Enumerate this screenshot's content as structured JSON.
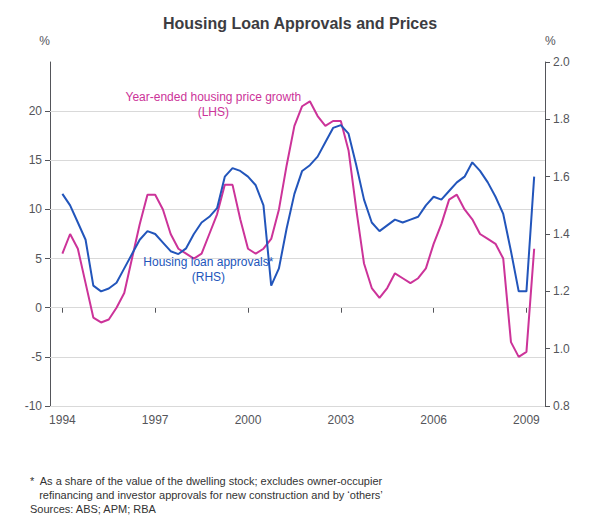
{
  "chart_data": {
    "type": "line",
    "title": "Housing Loan Approvals and Prices",
    "x": [
      1994.0,
      1994.25,
      1994.5,
      1994.75,
      1995.0,
      1995.25,
      1995.5,
      1995.75,
      1996.0,
      1996.25,
      1996.5,
      1996.75,
      1997.0,
      1997.25,
      1997.5,
      1997.75,
      1998.0,
      1998.25,
      1998.5,
      1998.75,
      1999.0,
      1999.25,
      1999.5,
      1999.75,
      2000.0,
      2000.25,
      2000.5,
      2000.75,
      2001.0,
      2001.25,
      2001.5,
      2001.75,
      2002.0,
      2002.25,
      2002.5,
      2002.75,
      2003.0,
      2003.25,
      2003.5,
      2003.75,
      2004.0,
      2004.25,
      2004.5,
      2004.75,
      2005.0,
      2005.25,
      2005.5,
      2005.75,
      2006.0,
      2006.25,
      2006.5,
      2006.75,
      2007.0,
      2007.25,
      2007.5,
      2007.75,
      2008.0,
      2008.25,
      2008.5,
      2008.75,
      2009.0,
      2009.25
    ],
    "xlim": [
      1993.6,
      2009.6
    ],
    "xticks": [
      1994,
      1997,
      2000,
      2003,
      2006,
      2009
    ],
    "ylim": [
      -10,
      25
    ],
    "yticks": [
      -10,
      -5,
      0,
      5,
      10,
      15,
      20
    ],
    "y2lim": [
      0.8,
      2.0
    ],
    "y2ticks": [
      0.8,
      {
        "value": 1.0,
        "label": "1.0"
      },
      1.2,
      1.4,
      1.6,
      1.8,
      {
        "value": 2.0,
        "label": "2.0"
      }
    ],
    "ylabel": "%",
    "y2label": "%",
    "grid": true,
    "series": [
      {
        "color": "#cc3399",
        "values": [
          5.5,
          7.5,
          6.0,
          2.5,
          -1.0,
          -1.5,
          -1.2,
          0.0,
          1.5,
          5.0,
          8.5,
          11.5,
          11.5,
          10.0,
          7.5,
          6.0,
          5.5,
          5.0,
          5.5,
          7.5,
          9.5,
          12.5,
          12.5,
          9.0,
          6.0,
          5.5,
          6.0,
          7.0,
          10.0,
          14.5,
          18.5,
          20.5,
          21.0,
          19.5,
          18.5,
          19.0,
          19.0,
          16.0,
          10.0,
          4.5,
          2.0,
          1.0,
          2.0,
          3.5,
          3.0,
          2.5,
          3.0,
          4.0,
          6.5,
          8.5,
          11.0,
          11.5,
          10.0,
          9.0,
          7.5,
          7.0,
          6.5,
          5.0,
          -3.5,
          -5.0,
          -4.5,
          6.0
        ]
      },
      {
        "color": "#2255bb",
        "axis": "y2",
        "values": [
          1.54,
          1.5,
          1.44,
          1.38,
          1.22,
          1.2,
          1.21,
          1.23,
          1.28,
          1.33,
          1.38,
          1.41,
          1.4,
          1.37,
          1.34,
          1.33,
          1.35,
          1.4,
          1.44,
          1.46,
          1.49,
          1.6,
          1.63,
          1.62,
          1.6,
          1.57,
          1.5,
          1.22,
          1.28,
          1.42,
          1.54,
          1.62,
          1.64,
          1.67,
          1.72,
          1.77,
          1.78,
          1.75,
          1.64,
          1.52,
          1.44,
          1.41,
          1.43,
          1.45,
          1.44,
          1.45,
          1.46,
          1.5,
          1.53,
          1.52,
          1.55,
          1.58,
          1.6,
          1.65,
          1.62,
          1.58,
          1.53,
          1.47,
          1.34,
          1.2,
          1.2,
          1.6
        ]
      }
    ],
    "annotations": [
      {
        "text": "Year-ended housing price growth\n(LHS)",
        "color": "#cc3399"
      },
      {
        "text": "Housing loan approvals*\n(RHS)",
        "color": "#2255bb"
      }
    ],
    "footnote": "*  As a share of the value of the dwelling stock; excludes owner-occupier\n   refinancing and investor approvals for new construction and by ‘others’\nSources: ABS; APM; RBA"
  }
}
